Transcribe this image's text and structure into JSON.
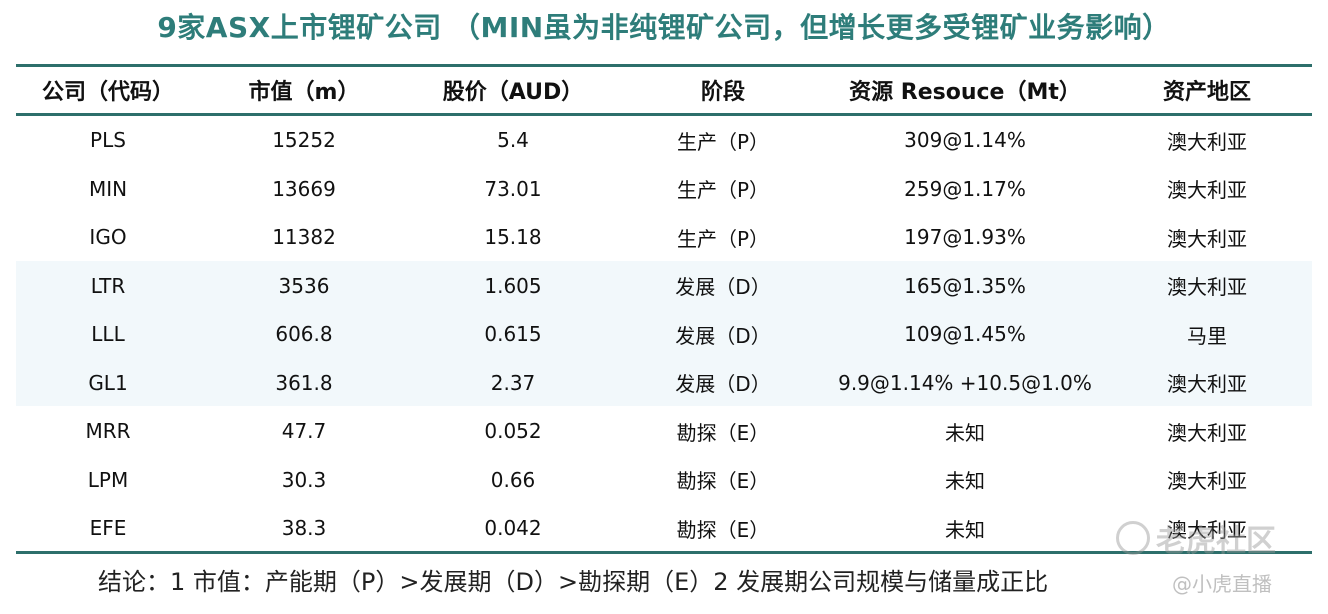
{
  "title": "9家ASX上市锂矿公司 （MIN虽为非纯锂矿公司，但增长更多受锂矿业务影响）",
  "headers": [
    "公司（代码）",
    "市值（m）",
    "股价（AUD）",
    "阶段",
    "资源 Resouce（Mt）",
    "资产地区"
  ],
  "rows": [
    [
      "PLS",
      "15252",
      "5.4",
      "生产（P）",
      "309@1.14%",
      "澳大利亚"
    ],
    [
      "MIN",
      "13669",
      "73.01",
      "生产（P）",
      "259@1.17%",
      "澳大利亚"
    ],
    [
      "IGO",
      "11382",
      "15.18",
      "生产（P）",
      "197@1.93%",
      "澳大利亚"
    ],
    [
      "LTR",
      "3536",
      "1.605",
      "发展（D）",
      "165@1.35%",
      "澳大利亚"
    ],
    [
      "LLL",
      "606.8",
      "0.615",
      "发展（D）",
      "109@1.45%",
      "马里"
    ],
    [
      "GL1",
      "361.8",
      "2.37",
      "发展（D）",
      "9.9@1.14% +10.5@1.0%",
      "澳大利亚"
    ],
    [
      "MRR",
      "47.7",
      "0.052",
      "勘探（E）",
      "未知",
      "澳大利亚"
    ],
    [
      "LPM",
      "30.3",
      "0.66",
      "勘探（E）",
      "未知",
      "澳大利亚"
    ],
    [
      "EFE",
      "38.3",
      "0.042",
      "勘探（E）",
      "未知",
      "澳大利亚"
    ]
  ],
  "conclusion": "结论：1 市值：产能期（P）>发展期（D）>勘探期（E）2 发展期公司规模与储量成正比",
  "watermark": {
    "main": "老虎社区",
    "sub": "@小虎直播"
  },
  "colors": {
    "title": "#2e7d7a",
    "rule": "#2d6f6b",
    "shade": "#f2f8fb"
  }
}
